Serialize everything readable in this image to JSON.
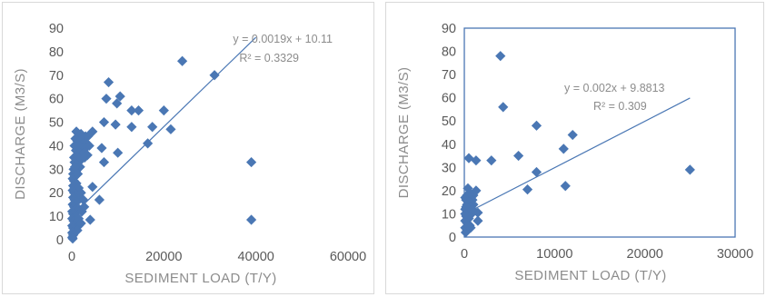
{
  "chart_data": [
    {
      "type": "scatter",
      "xlabel": "SEDIMENT LOAD (T/Y)",
      "ylabel": "DISCHARGE (M3/S)",
      "xlim": [
        0,
        60000
      ],
      "ylim": [
        0,
        90
      ],
      "xticks": [
        "0",
        "20000",
        "40000",
        "60000"
      ],
      "yticks": [
        "0",
        "10",
        "20",
        "30",
        "40",
        "50",
        "60",
        "70",
        "80",
        "90"
      ],
      "grid": false,
      "border": false,
      "marker_color": "#4a77b4",
      "trendline": {
        "slope": 0.0019,
        "intercept": 10.11,
        "equation": "y = 0.0019x + 10.11",
        "r2": "R² = 0.3329"
      },
      "points": [
        [
          24000,
          76
        ],
        [
          31000,
          70
        ],
        [
          8000,
          67
        ],
        [
          7500,
          60
        ],
        [
          10500,
          61
        ],
        [
          9800,
          58
        ],
        [
          13000,
          55
        ],
        [
          14500,
          55
        ],
        [
          20000,
          55
        ],
        [
          7000,
          50
        ],
        [
          9500,
          49
        ],
        [
          13000,
          48
        ],
        [
          17500,
          48
        ],
        [
          21500,
          47
        ],
        [
          4500,
          46
        ],
        [
          16500,
          41
        ],
        [
          6500,
          39
        ],
        [
          10000,
          37
        ],
        [
          39000,
          33
        ],
        [
          7000,
          33
        ],
        [
          4500,
          22.5
        ],
        [
          6000,
          17
        ],
        [
          4000,
          8.5
        ],
        [
          39000,
          8.5
        ],
        [
          1000,
          46
        ],
        [
          1500,
          45
        ],
        [
          2000,
          45
        ],
        [
          2500,
          44
        ],
        [
          3000,
          44
        ],
        [
          3500,
          44
        ],
        [
          800,
          43
        ],
        [
          1200,
          42
        ],
        [
          1800,
          42
        ],
        [
          2600,
          41
        ],
        [
          3200,
          41
        ],
        [
          600,
          40
        ],
        [
          1500,
          40
        ],
        [
          2200,
          39
        ],
        [
          3000,
          39
        ],
        [
          3800,
          40
        ],
        [
          900,
          38
        ],
        [
          1700,
          37
        ],
        [
          2600,
          37
        ],
        [
          3400,
          36
        ],
        [
          500,
          35
        ],
        [
          1300,
          35
        ],
        [
          2000,
          34
        ],
        [
          2800,
          35
        ],
        [
          600,
          33
        ],
        [
          1100,
          32
        ],
        [
          1800,
          31
        ],
        [
          400,
          30
        ],
        [
          900,
          29
        ],
        [
          300,
          28
        ],
        [
          700,
          27
        ],
        [
          200,
          26
        ],
        [
          500,
          25
        ],
        [
          1000,
          24
        ],
        [
          300,
          23
        ],
        [
          600,
          22
        ],
        [
          1500,
          22
        ],
        [
          200,
          21
        ],
        [
          500,
          20
        ],
        [
          900,
          19
        ],
        [
          1800,
          18
        ],
        [
          2500,
          17
        ],
        [
          300,
          18
        ],
        [
          600,
          17
        ],
        [
          1000,
          16
        ],
        [
          200,
          15
        ],
        [
          500,
          14
        ],
        [
          800,
          13
        ],
        [
          1600,
          13
        ],
        [
          2200,
          12
        ],
        [
          100,
          12
        ],
        [
          300,
          11
        ],
        [
          600,
          10
        ],
        [
          1000,
          10
        ],
        [
          100,
          9
        ],
        [
          400,
          8
        ],
        [
          800,
          7
        ],
        [
          1500,
          6
        ],
        [
          100,
          6
        ],
        [
          300,
          5
        ],
        [
          600,
          4
        ],
        [
          1200,
          4
        ],
        [
          100,
          3
        ],
        [
          300,
          2
        ],
        [
          100,
          1
        ],
        [
          200,
          0.5
        ],
        [
          700,
          31
        ],
        [
          1300,
          28
        ],
        [
          2000,
          20
        ],
        [
          2700,
          14
        ],
        [
          1500,
          9
        ],
        [
          2000,
          7
        ]
      ]
    },
    {
      "type": "scatter",
      "xlabel": "SEDIMENT LOAD (T/Y)",
      "ylabel": "DISCHARGE (M3/S)",
      "xlim": [
        0,
        30000
      ],
      "ylim": [
        0,
        90
      ],
      "xticks": [
        "0",
        "10000",
        "20000",
        "30000"
      ],
      "yticks": [
        "0",
        "10",
        "20",
        "30",
        "40",
        "50",
        "60",
        "70",
        "80",
        "90"
      ],
      "grid": false,
      "border": true,
      "border_color": "#4a77b4",
      "marker_color": "#4a77b4",
      "trendline": {
        "slope": 0.002,
        "intercept": 9.8813,
        "equation": "y = 0.002x + 9.8813",
        "r2": "R² = 0.309"
      },
      "points": [
        [
          4000,
          78
        ],
        [
          4300,
          56
        ],
        [
          8000,
          48
        ],
        [
          12000,
          44
        ],
        [
          11000,
          38
        ],
        [
          6000,
          35
        ],
        [
          3000,
          33
        ],
        [
          500,
          34
        ],
        [
          1300,
          33
        ],
        [
          8000,
          28
        ],
        [
          25000,
          29
        ],
        [
          11200,
          22
        ],
        [
          7000,
          20.5
        ],
        [
          1300,
          20
        ],
        [
          400,
          21
        ],
        [
          100,
          17
        ],
        [
          300,
          18
        ],
        [
          600,
          17
        ],
        [
          900,
          16
        ],
        [
          200,
          16
        ],
        [
          500,
          15
        ],
        [
          1000,
          14
        ],
        [
          300,
          14
        ],
        [
          700,
          13
        ],
        [
          100,
          12
        ],
        [
          400,
          11
        ],
        [
          1500,
          10.5
        ],
        [
          800,
          10
        ],
        [
          200,
          9
        ],
        [
          500,
          8
        ],
        [
          1500,
          7
        ],
        [
          100,
          7
        ],
        [
          300,
          6
        ],
        [
          600,
          5
        ],
        [
          100,
          4
        ],
        [
          300,
          3
        ],
        [
          150,
          2
        ],
        [
          700,
          4
        ],
        [
          500,
          12
        ],
        [
          1000,
          18
        ],
        [
          200,
          13
        ],
        [
          600,
          19
        ],
        [
          900,
          12
        ],
        [
          100,
          10
        ],
        [
          400,
          5
        ]
      ]
    }
  ]
}
